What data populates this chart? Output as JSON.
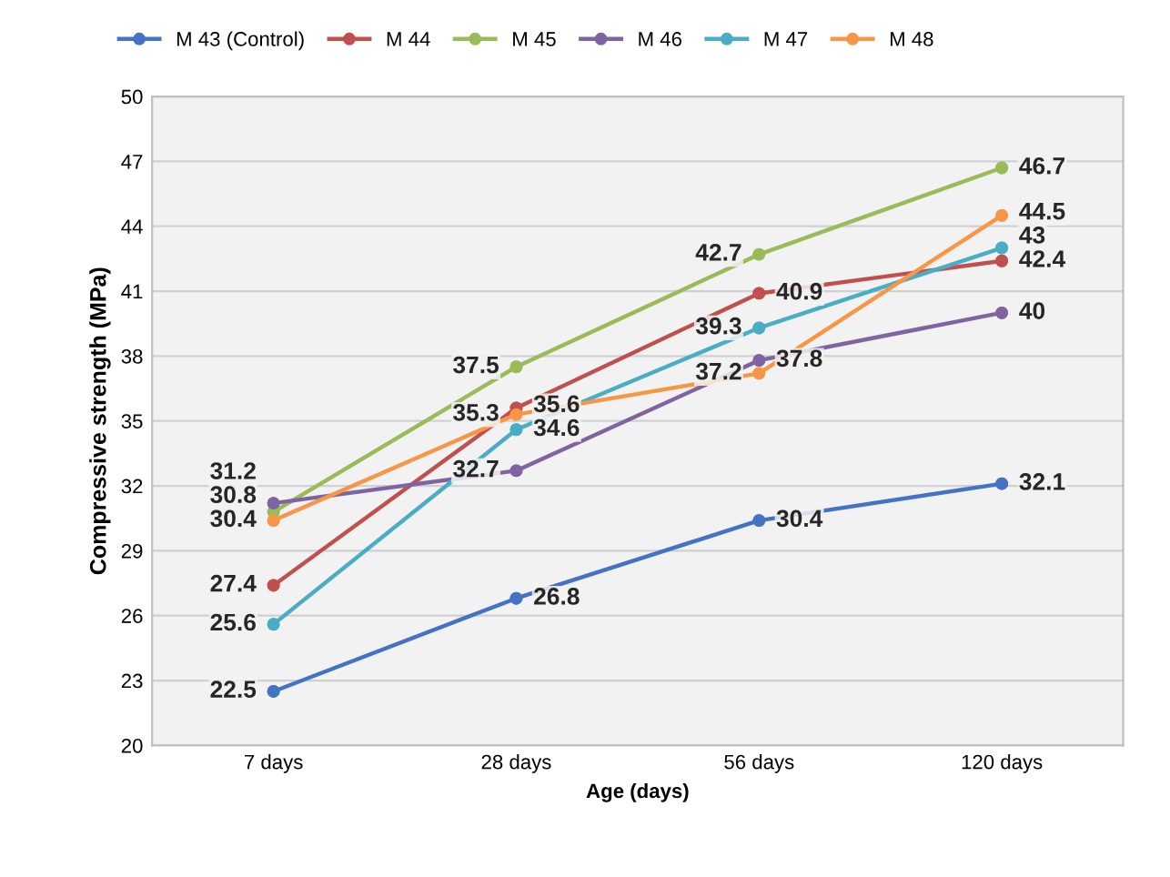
{
  "chart_data": {
    "type": "line",
    "xlabel": "Age (days)",
    "ylabel": "Compressive strength (MPa)",
    "categories": [
      "7 days",
      "28 days",
      "56 days",
      "120 days"
    ],
    "series": [
      {
        "name": "M 43 (Control)",
        "color": "#4472c4",
        "values": [
          22.5,
          26.8,
          30.4,
          32.1
        ]
      },
      {
        "name": "M 44",
        "color": "#c0504d",
        "values": [
          27.4,
          35.6,
          40.9,
          42.4
        ]
      },
      {
        "name": "M 45",
        "color": "#9bbb59",
        "values": [
          30.8,
          37.5,
          42.7,
          46.7
        ]
      },
      {
        "name": "M 46",
        "color": "#8064a2",
        "values": [
          31.2,
          32.7,
          37.8,
          40
        ]
      },
      {
        "name": "M 47",
        "color": "#4bacc6",
        "values": [
          25.6,
          34.6,
          39.3,
          43
        ]
      },
      {
        "name": "M 48",
        "color": "#f79646",
        "values": [
          30.4,
          35.3,
          37.2,
          44.5
        ]
      }
    ],
    "ylim": [
      20,
      50
    ],
    "yticks": [
      20,
      23,
      26,
      29,
      32,
      35,
      38,
      41,
      44,
      47,
      50
    ],
    "grid": "y",
    "legend": "top",
    "marker": "circle",
    "line_style": "solid",
    "data_labels": true
  }
}
